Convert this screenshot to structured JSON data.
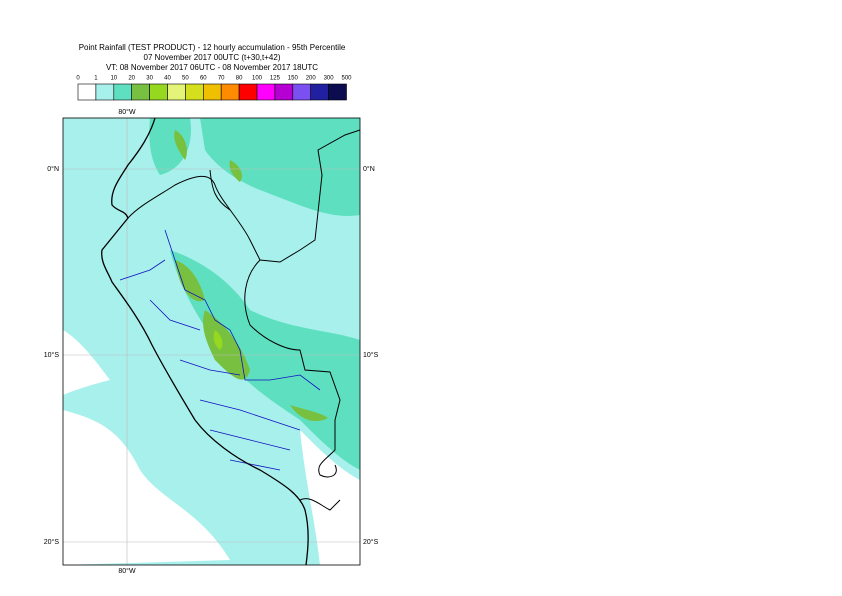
{
  "header": {
    "title": "Point Rainfall (TEST PRODUCT) - 12 hourly accumulation - 95th Percentile",
    "line2": "07 November 2017 00UTC (t+30,t+42)",
    "line3": "VT: 08 November 2017 06UTC - 08 November 2017 18UTC"
  },
  "legend": {
    "labels": [
      0,
      1,
      10,
      20,
      30,
      40,
      50,
      60,
      70,
      80,
      100,
      125,
      150,
      200,
      300,
      500
    ],
    "colors": [
      "#ffffff",
      "#a8f0ec",
      "#5ee0c0",
      "#78c040",
      "#96d820",
      "#e4f478",
      "#d4e01e",
      "#f0c000",
      "#ff8c00",
      "#ff0000",
      "#ff00ff",
      "#b400d0",
      "#7a50f0",
      "#2020a0",
      "#0c0c50"
    ]
  },
  "map": {
    "lon_labels": [
      "80°W"
    ],
    "lat_labels": [
      "0°N",
      "10°S",
      "20°S"
    ]
  }
}
